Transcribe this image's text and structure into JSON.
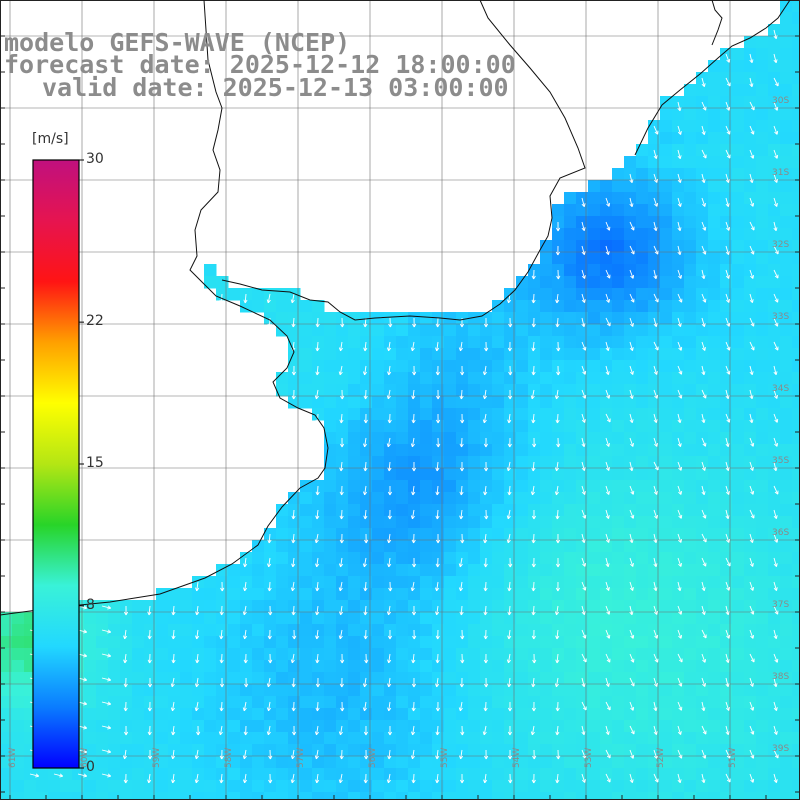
{
  "titles": {
    "line1": "modelo GEFS-WAVE (NCEP)",
    "line2": "forecast date: 2025-12-12 18:00:00",
    "line3": "valid date: 2025-12-13 03:00:00"
  },
  "colorbar": {
    "unit": "[m/s]",
    "min": 0,
    "max": 30,
    "ticks": [
      {
        "value": 30,
        "label": "30"
      },
      {
        "value": 22,
        "label": "22"
      },
      {
        "value": 15,
        "label": "15"
      },
      {
        "value": 8,
        "label": "8"
      },
      {
        "value": 0,
        "label": "0"
      }
    ],
    "colors": [
      "#0000ff",
      "#0a7cff",
      "#22d8ff",
      "#39f2d8",
      "#28d428",
      "#b4e614",
      "#ffff00",
      "#ffa000",
      "#ff1414",
      "#e61450",
      "#c0107e"
    ]
  },
  "map": {
    "land_color": "#ffffff",
    "grid_color": "#6e6e6e",
    "coast_color": "#111111",
    "arrow_color": "#ffffff"
  },
  "axis_labels": {
    "longitude": [
      "61W",
      "60W",
      "59W",
      "58W",
      "57W",
      "56W",
      "55W",
      "54W",
      "53W",
      "52W",
      "51W"
    ],
    "latitude": [
      "30S",
      "31S",
      "32S",
      "33S",
      "34S",
      "35S",
      "36S",
      "37S",
      "38S",
      "39S"
    ]
  }
}
